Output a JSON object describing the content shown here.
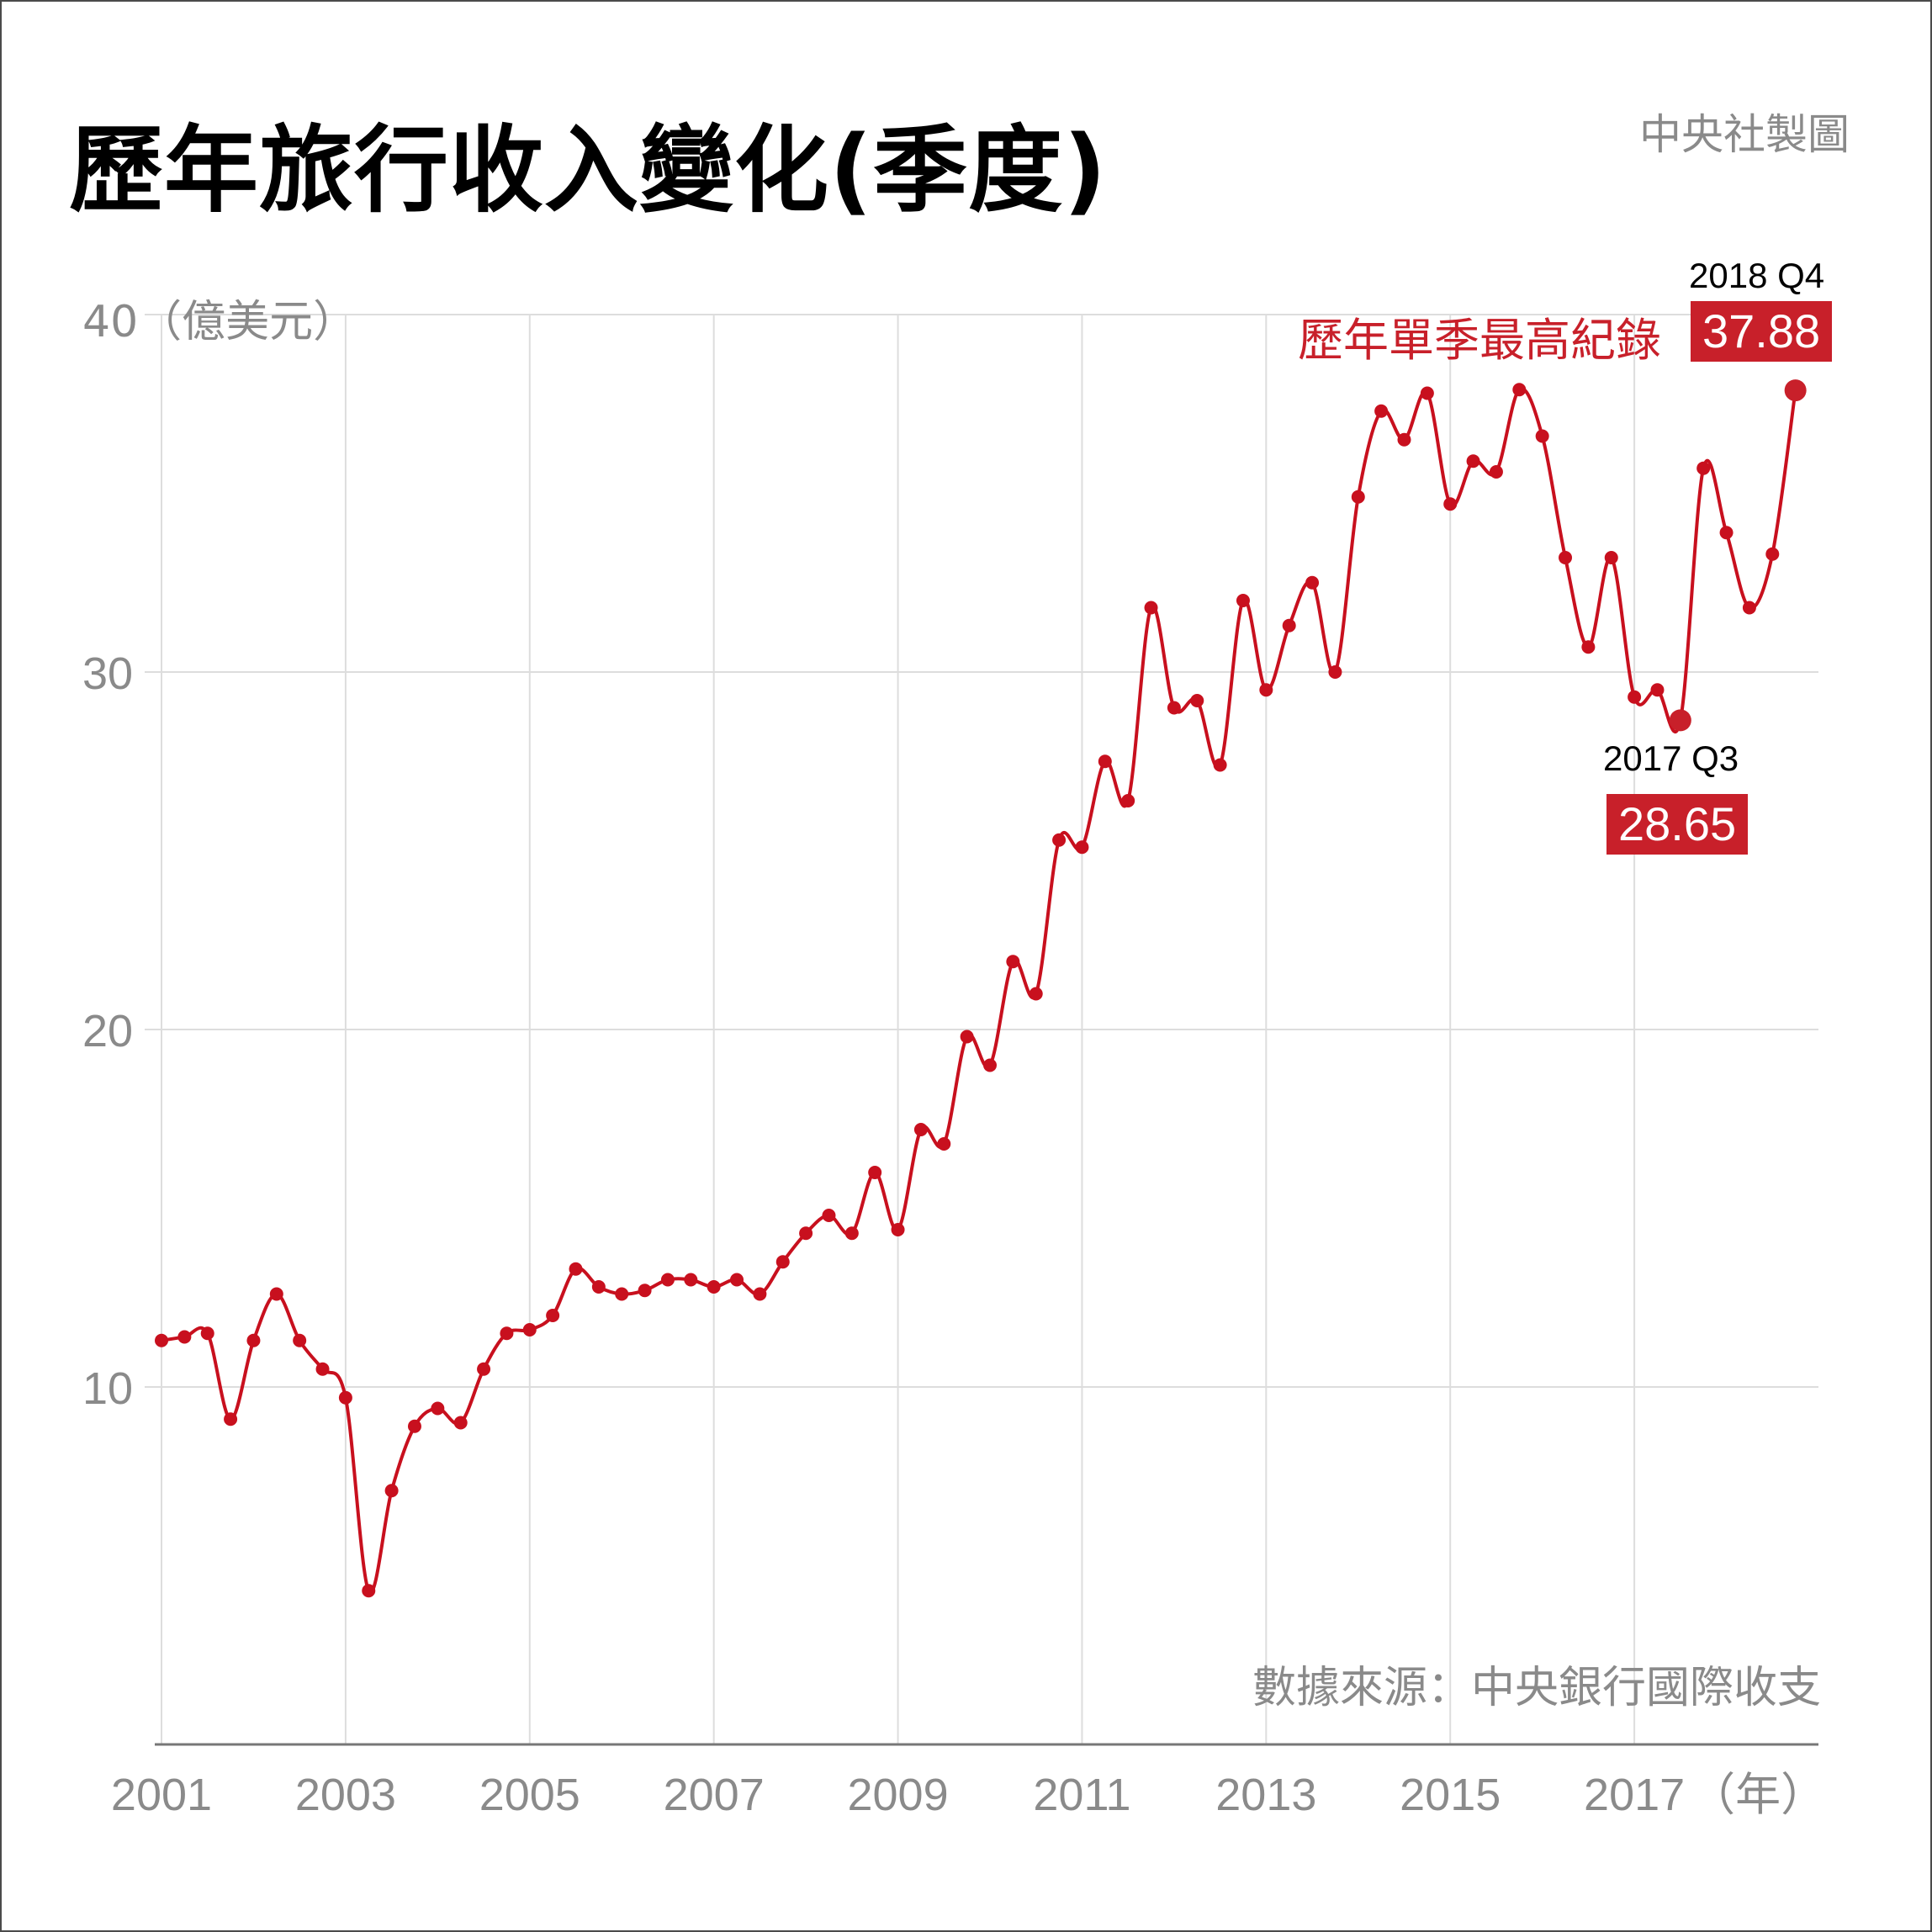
{
  "title": "歷年旅行收入變化(季度)",
  "credit": "中央社製圖",
  "unit_label": "40（億美元）",
  "source_note": "數據來源：中央銀行國際收支",
  "record_label": "歷年單季最高紀錄",
  "annotations": {
    "high": {
      "period": "2018 Q4",
      "value": "37.88"
    },
    "low": {
      "period": "2017 Q3",
      "value": "28.65"
    }
  },
  "colors": {
    "line": "#c8101e",
    "highlight": "#c8202a",
    "grid": "#dddddd",
    "axis_text": "#8a8a8a"
  },
  "chart_data": {
    "type": "line",
    "title": "歷年旅行收入變化(季度)",
    "ylabel": "億美元",
    "xlabel": "年",
    "ylim": [
      0,
      40
    ],
    "xlim": [
      2001,
      2019
    ],
    "x_ticks": [
      "2001",
      "2003",
      "2005",
      "2007",
      "2009",
      "2011",
      "2013",
      "2015",
      "2017"
    ],
    "x_axis_suffix": "（年）",
    "y_ticks": [
      "10",
      "20",
      "30"
    ],
    "grid": true,
    "series": [
      {
        "values": [
          11.3,
          11.4,
          11.5,
          9.1,
          11.3,
          12.6,
          11.3,
          10.5,
          9.7,
          4.3,
          7.1,
          8.9,
          9.4,
          9.0,
          10.5,
          11.5,
          11.6,
          12.0,
          13.3,
          12.8,
          12.6,
          12.7,
          13.0,
          13.0,
          12.8,
          13.0,
          12.6,
          13.5,
          14.3,
          14.8,
          14.3,
          16.0,
          14.4,
          17.2,
          16.8,
          19.8,
          19.0,
          21.9,
          21.0,
          25.3,
          25.1,
          27.5,
          26.4,
          31.8,
          29.0,
          29.2,
          27.4,
          32.0,
          29.5,
          31.3,
          32.5,
          30.0,
          34.9,
          37.3,
          36.5,
          37.8,
          34.7,
          35.9,
          35.6,
          37.9,
          36.6,
          33.2,
          30.7,
          33.2,
          29.3,
          29.5,
          28.65,
          35.7,
          33.9,
          31.8,
          33.3,
          37.88
        ]
      }
    ]
  }
}
